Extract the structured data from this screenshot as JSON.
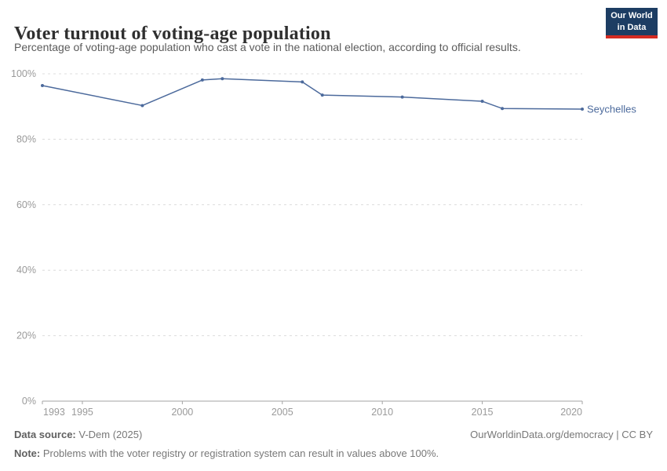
{
  "header": {
    "title": "Voter turnout of voting-age population",
    "subtitle": "Percentage of voting-age population who cast a vote in the national election, according to official results.",
    "logo_line1": "Our World",
    "logo_line2": "in Data",
    "logo_bg_color": "#1d3d63",
    "logo_accent_color": "#d42b22"
  },
  "chart_data": {
    "type": "line",
    "title": "Voter turnout of voting-age population",
    "subtitle": "Percentage of voting-age population who cast a vote in the national election, according to official results.",
    "series": [
      {
        "name": "Seychelles",
        "color": "#4C6A9C",
        "x": [
          1993,
          1998,
          2001,
          2002,
          2006,
          2007,
          2011,
          2015,
          2016,
          2020
        ],
        "values": [
          96.4,
          90.3,
          98.1,
          98.5,
          97.5,
          93.5,
          92.9,
          91.6,
          89.4,
          89.2
        ]
      }
    ],
    "xlabel": "",
    "ylabel": "",
    "xlim": [
      1993,
      2020
    ],
    "ylim": [
      0,
      100
    ],
    "xticks": [
      1993,
      1995,
      2000,
      2005,
      2010,
      2015,
      2020
    ],
    "yticks": [
      0,
      20,
      40,
      60,
      80,
      100
    ],
    "ytick_suffix": "%",
    "grid": "horizontal-dashed",
    "legend": "end-of-line-label",
    "gridline_color": "#dcdcdc",
    "axis_color": "#a3a3a3",
    "tick_label_color": "#9a9a9a"
  },
  "footer": {
    "datasource_label": "Data source:",
    "datasource_value": " V-Dem (2025)",
    "link": "OurWorldinData.org/democracy | CC BY",
    "note_label": "Note:",
    "note_value": " Problems with the voter registry or registration system can result in values above 100%."
  }
}
